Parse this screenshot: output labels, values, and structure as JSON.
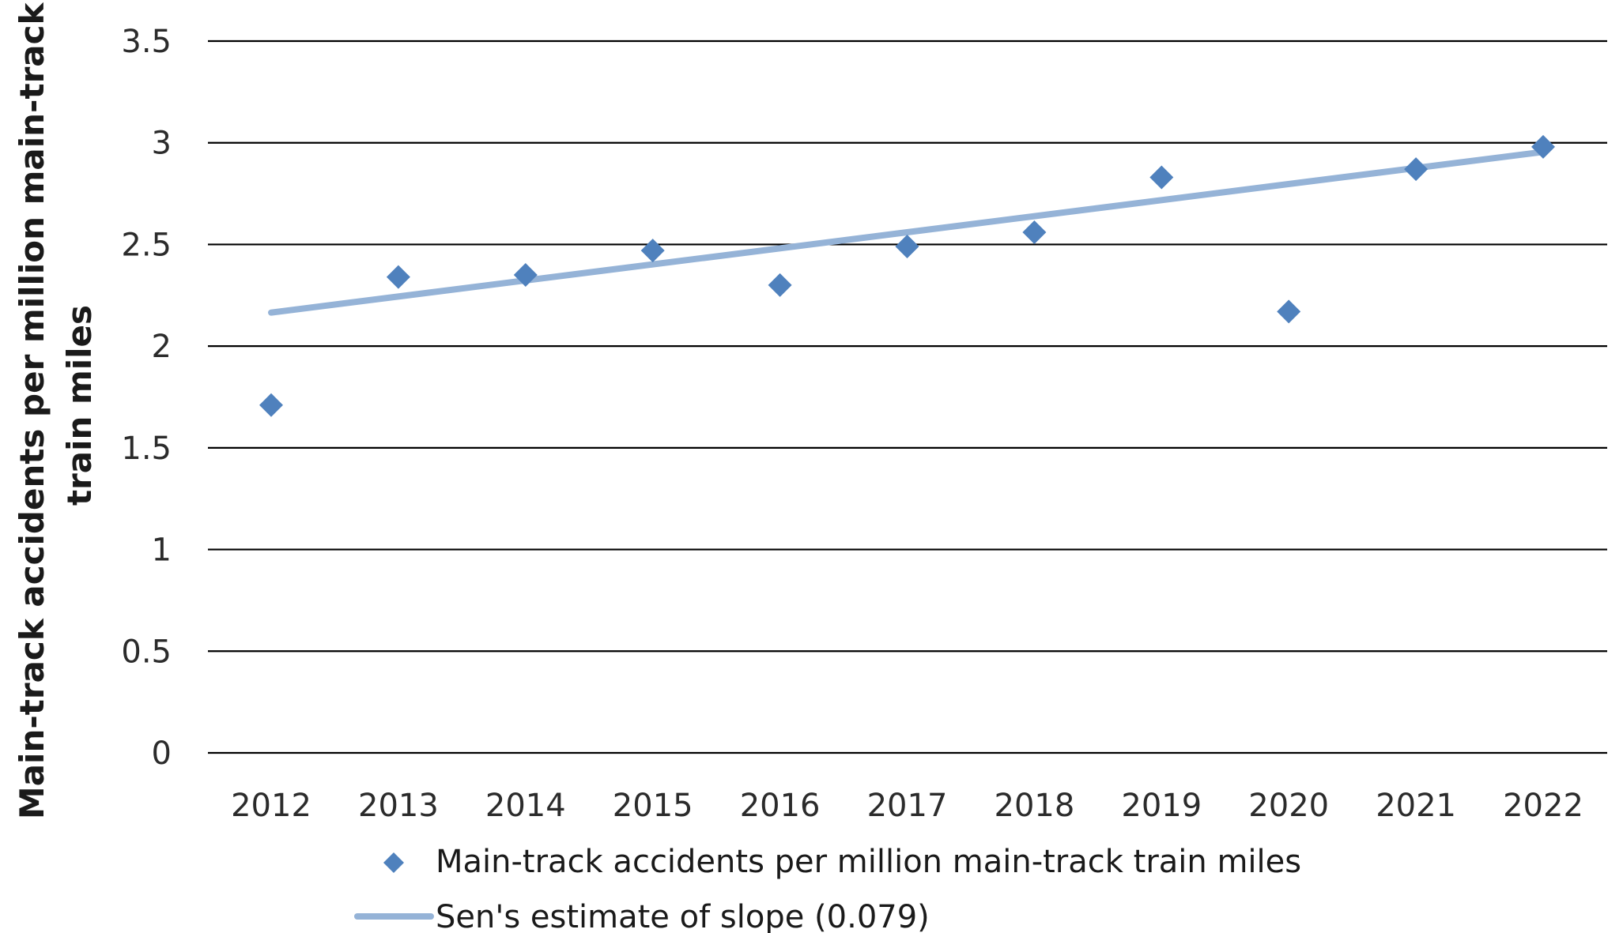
{
  "chart_data": {
    "type": "scatter",
    "title": "",
    "xlabel": "",
    "ylabel_lines": [
      "Main-track accidents per million main-track",
      "train miles"
    ],
    "x": [
      "2012",
      "2013",
      "2014",
      "2015",
      "2016",
      "2017",
      "2018",
      "2019",
      "2020",
      "2021",
      "2022"
    ],
    "ylim": [
      0,
      3.5
    ],
    "yticks": [
      "0",
      "0.5",
      "1",
      "1.5",
      "2",
      "2.5",
      "3",
      "3.5"
    ],
    "grid": true,
    "legend_position": "bottom",
    "series": [
      {
        "name": "Main-track accidents  per million main-track train miles",
        "kind": "scatter",
        "marker": "diamond",
        "color": "#4f81bd",
        "values": [
          1.71,
          2.34,
          2.35,
          2.47,
          2.3,
          2.49,
          2.56,
          2.83,
          2.17,
          2.87,
          2.98
        ]
      },
      {
        "name": "Sen's estimate of slope (0.079)",
        "kind": "line",
        "color": "#95b3d7",
        "start": {
          "x": "2012",
          "y": 2.165
        },
        "end": {
          "x": "2022",
          "y": 2.955
        }
      }
    ]
  }
}
